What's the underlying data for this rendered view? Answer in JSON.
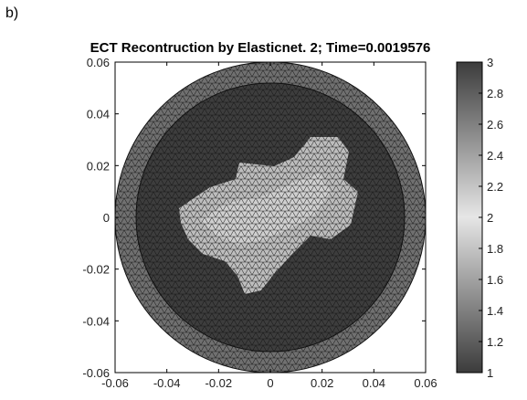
{
  "panel_label": "b)",
  "chart_data": {
    "type": "heatmap",
    "title": "ECT Recontruction by Elasticnet. 2; Time=0.0019576",
    "xlabel": "",
    "ylabel": "",
    "xlim": [
      -0.06,
      0.06
    ],
    "ylim": [
      -0.06,
      0.06
    ],
    "x_ticks": [
      "-0.06",
      "-0.04",
      "-0.02",
      "0",
      "0.02",
      "0.04",
      "0.06"
    ],
    "y_ticks": [
      "0.06",
      "0.04",
      "0.02",
      "0",
      "-0.02",
      "-0.04",
      "-0.06"
    ],
    "colorbar": {
      "range": [
        1,
        3
      ],
      "ticks": [
        "3",
        "2.8",
        "2.6",
        "2.4",
        "2.2",
        "2",
        "1.8",
        "1.6",
        "1.4",
        "1.2",
        "1"
      ],
      "colormap": "gray (low dark, high dark, light near 2)"
    },
    "domain": {
      "shape": "circle",
      "radius": 0.06,
      "regions": [
        {
          "name": "outer ring",
          "value": 2.6,
          "r_inner": 0.052,
          "r_outer": 0.06
        },
        {
          "name": "inner background",
          "value": 2.8,
          "r_outer": 0.052
        },
        {
          "name": "central object",
          "value": 2.0,
          "approx_extent_x": [
            -0.035,
            0.03
          ],
          "approx_extent_y": [
            -0.03,
            0.03
          ]
        }
      ]
    },
    "grid": false,
    "mesh": "triangular finite-element mesh"
  }
}
